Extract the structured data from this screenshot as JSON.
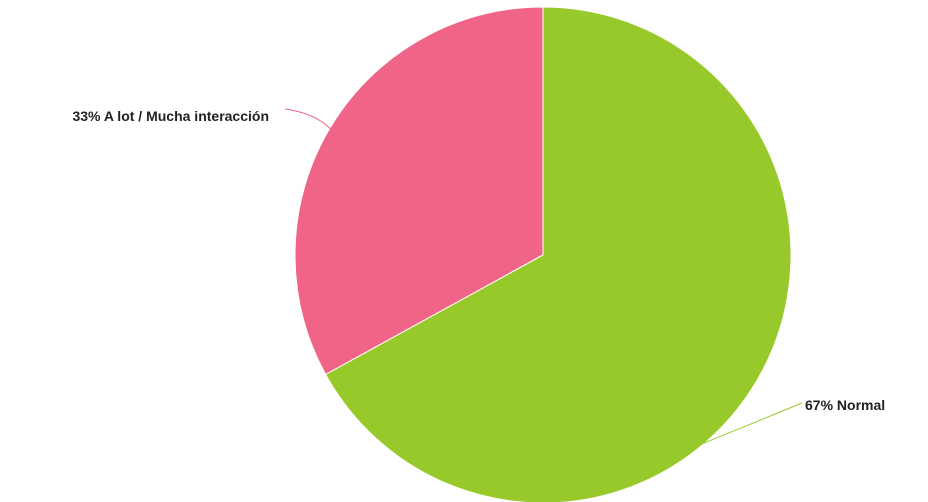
{
  "chart_data": {
    "type": "pie",
    "categories": [
      "A lot / Mucha interacción",
      "Normal"
    ],
    "values": [
      33,
      67
    ],
    "labels": [
      "33% A lot / Mucha interacción",
      "67% Normal"
    ],
    "colors": [
      "#f06488",
      "#97c92a"
    ],
    "start": "12 o'clock",
    "direction": "counterclockwise",
    "legend": "none",
    "title": ""
  }
}
